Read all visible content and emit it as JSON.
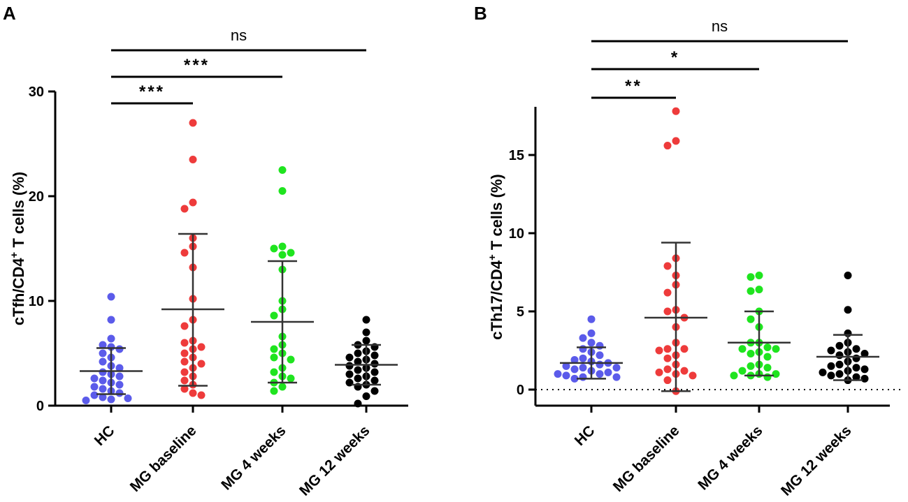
{
  "chart_data": [
    {
      "panel_label": "A",
      "type": "scatter",
      "ylabel": {
        "main": "cTfh/CD4",
        "sup": "+",
        "tail": " T cells (%)"
      },
      "ylim": [
        0,
        30
      ],
      "yticks": [
        "0",
        "10",
        "20",
        "30"
      ],
      "yticks_values": [
        0,
        10,
        20,
        30
      ],
      "categories": [
        "HC",
        "MG baseline",
        "MG 4 weeks",
        "MG 12 weeks"
      ],
      "colors": [
        "#5b5bea",
        "#ee3b3b",
        "#1fe41f",
        "#000000"
      ],
      "series": [
        {
          "name": "HC",
          "mean": 3.3,
          "sd_low": 1.1,
          "sd_high": 5.5,
          "values": [
            10.4,
            8.2,
            6.4,
            5.8,
            5.6,
            5.4,
            5.0,
            4.6,
            4.2,
            3.8,
            3.6,
            3.2,
            3.0,
            2.8,
            2.6,
            2.4,
            2.2,
            2.0,
            1.8,
            1.6,
            1.4,
            1.2,
            1.0,
            0.8,
            0.7,
            0.6,
            0.5
          ]
        },
        {
          "name": "MG baseline",
          "mean": 9.2,
          "sd_low": 1.9,
          "sd_high": 16.4,
          "values": [
            27.0,
            23.5,
            19.4,
            18.8,
            16.0,
            15.2,
            14.6,
            13.2,
            10.2,
            8.2,
            7.6,
            6.2,
            6.0,
            5.6,
            5.4,
            5.0,
            4.6,
            4.2,
            4.0,
            3.6,
            3.2,
            2.8,
            2.4,
            2.0,
            1.6,
            1.2,
            1.0
          ]
        },
        {
          "name": "MG 4 weeks",
          "mean": 8.0,
          "sd_low": 2.2,
          "sd_high": 13.8,
          "values": [
            22.5,
            20.5,
            15.2,
            15.0,
            14.6,
            14.4,
            13.0,
            10.0,
            9.2,
            8.6,
            6.6,
            5.8,
            5.4,
            5.0,
            4.6,
            4.4,
            3.6,
            3.2,
            2.8,
            2.6,
            2.2,
            1.8,
            1.4
          ]
        },
        {
          "name": "MG 12 weeks",
          "mean": 3.9,
          "sd_low": 2.0,
          "sd_high": 5.8,
          "values": [
            8.2,
            7.0,
            6.2,
            5.8,
            5.6,
            5.2,
            5.0,
            4.8,
            4.6,
            4.4,
            4.2,
            4.0,
            3.8,
            3.6,
            3.4,
            3.2,
            3.0,
            2.8,
            2.6,
            2.4,
            2.2,
            2.0,
            1.8,
            1.4,
            0.9,
            0.2
          ]
        }
      ],
      "comparisons": [
        {
          "from": "HC",
          "to": "MG baseline",
          "label": "***"
        },
        {
          "from": "HC",
          "to": "MG 4 weeks",
          "label": "***"
        },
        {
          "from": "HC",
          "to": "MG 12 weeks",
          "label": "ns"
        }
      ]
    },
    {
      "panel_label": "B",
      "type": "scatter",
      "ylabel": {
        "main": "cTh17/CD4",
        "sup": "+",
        "tail": " T cells (%)"
      },
      "ylim": [
        -1,
        18
      ],
      "yticks": [
        "0",
        "5",
        "10",
        "15"
      ],
      "yticks_values": [
        0,
        5,
        10,
        15
      ],
      "zero_line": true,
      "categories": [
        "HC",
        "MG baseline",
        "MG 4 weeks",
        "MG 12 weeks"
      ],
      "colors": [
        "#5b5bea",
        "#ee3b3b",
        "#1fe41f",
        "#000000"
      ],
      "series": [
        {
          "name": "HC",
          "mean": 1.7,
          "sd_low": 0.7,
          "sd_high": 2.7,
          "values": [
            4.5,
            3.6,
            3.3,
            3.0,
            2.8,
            2.6,
            2.4,
            2.2,
            2.0,
            1.9,
            1.8,
            1.7,
            1.6,
            1.5,
            1.4,
            1.4,
            1.3,
            1.2,
            1.1,
            1.0,
            1.0,
            0.9,
            0.8,
            0.8,
            0.7
          ]
        },
        {
          "name": "MG baseline",
          "mean": 4.6,
          "sd_low": -0.1,
          "sd_high": 9.4,
          "values": [
            17.8,
            15.9,
            15.6,
            8.4,
            7.9,
            7.3,
            6.7,
            6.2,
            5.1,
            5.0,
            4.6,
            4.0,
            3.0,
            2.6,
            2.6,
            2.5,
            2.2,
            2.0,
            1.6,
            1.3,
            1.2,
            1.1,
            1.0,
            0.9,
            0.6,
            -0.1
          ]
        },
        {
          "name": "MG 4 weeks",
          "mean": 3.0,
          "sd_low": 0.9,
          "sd_high": 5.0,
          "values": [
            7.3,
            7.2,
            6.4,
            6.3,
            5.0,
            4.5,
            4.0,
            3.0,
            3.0,
            2.7,
            2.6,
            2.6,
            2.4,
            2.3,
            2.1,
            1.6,
            1.5,
            1.4,
            1.2,
            1.0,
            1.0,
            0.9,
            0.9,
            0.8
          ]
        },
        {
          "name": "MG 12 weeks",
          "mean": 2.1,
          "sd_low": 0.6,
          "sd_high": 3.5,
          "values": [
            7.3,
            5.1,
            3.6,
            3.0,
            2.8,
            2.6,
            2.5,
            2.4,
            2.3,
            2.2,
            2.0,
            1.8,
            1.6,
            1.5,
            1.4,
            1.3,
            1.2,
            1.1,
            1.0,
            0.9,
            0.8,
            0.7,
            0.6
          ]
        }
      ],
      "comparisons": [
        {
          "from": "HC",
          "to": "MG baseline",
          "label": "**"
        },
        {
          "from": "HC",
          "to": "MG 4 weeks",
          "label": "*"
        },
        {
          "from": "HC",
          "to": "MG 12 weeks",
          "label": "ns"
        }
      ]
    }
  ]
}
